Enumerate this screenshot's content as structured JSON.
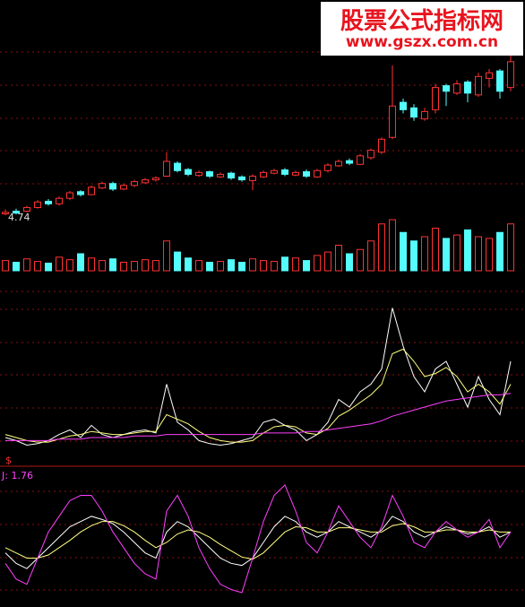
{
  "watermark": {
    "title": "股票公式指标网",
    "url": "www.gszx.com.cn"
  },
  "chart_data": [
    {
      "type": "candlestick",
      "up_color": "#ff3232",
      "down_color": "#54fcfc",
      "ylim": [
        4.5,
        9.6
      ],
      "open": [
        4.78,
        4.85,
        4.85,
        4.95,
        5.12,
        5.05,
        5.2,
        5.38,
        5.3,
        5.48,
        5.6,
        5.45,
        5.55,
        5.62,
        5.7,
        5.8,
        6.15,
        5.98,
        5.82,
        5.92,
        5.78,
        5.88,
        5.78,
        5.68,
        5.78,
        5.88,
        5.97,
        5.83,
        5.92,
        5.78,
        5.95,
        6.08,
        6.22,
        6.12,
        6.3,
        6.45,
        6.85,
        7.8,
        7.65,
        7.35,
        7.6,
        8.25,
        8.05,
        8.35,
        8.0,
        8.45,
        8.65,
        8.2
      ],
      "high": [
        4.9,
        4.92,
        5.0,
        5.15,
        5.18,
        5.25,
        5.4,
        5.42,
        5.55,
        5.65,
        5.65,
        5.6,
        5.7,
        5.75,
        5.8,
        6.45,
        6.2,
        6.02,
        5.95,
        5.95,
        5.9,
        5.92,
        5.82,
        5.85,
        5.95,
        6.0,
        6.02,
        5.95,
        5.98,
        6.0,
        6.15,
        6.25,
        6.28,
        6.4,
        6.55,
        6.85,
        8.8,
        7.9,
        7.75,
        7.65,
        8.3,
        8.3,
        8.4,
        8.4,
        8.6,
        8.7,
        8.7,
        9.5
      ],
      "low": [
        4.74,
        4.76,
        4.82,
        4.92,
        5.0,
        5.0,
        5.15,
        5.25,
        5.28,
        5.45,
        5.4,
        5.42,
        5.5,
        5.6,
        5.65,
        5.78,
        5.9,
        5.8,
        5.78,
        5.75,
        5.75,
        5.7,
        5.65,
        5.42,
        5.75,
        5.85,
        5.8,
        5.8,
        5.75,
        5.75,
        5.9,
        6.05,
        6.1,
        6.1,
        6.25,
        6.4,
        6.8,
        7.5,
        7.3,
        7.3,
        7.5,
        7.7,
        8.0,
        7.8,
        7.95,
        8.2,
        7.9,
        8.1
      ],
      "close": [
        4.82,
        4.8,
        4.95,
        5.1,
        5.05,
        5.2,
        5.35,
        5.3,
        5.5,
        5.6,
        5.45,
        5.55,
        5.65,
        5.7,
        5.75,
        6.2,
        5.95,
        5.85,
        5.9,
        5.8,
        5.85,
        5.75,
        5.7,
        5.8,
        5.9,
        5.95,
        5.85,
        5.9,
        5.8,
        5.95,
        6.1,
        6.2,
        6.15,
        6.35,
        6.5,
        6.8,
        7.7,
        7.6,
        7.4,
        7.55,
        8.2,
        8.1,
        8.3,
        8.05,
        8.5,
        8.6,
        8.1,
        8.9
      ]
    },
    {
      "type": "bar",
      "ylim": [
        0,
        60
      ],
      "values": [
        12,
        10,
        14,
        11,
        9,
        16,
        13,
        20,
        15,
        12,
        14,
        10,
        11,
        13,
        12,
        35,
        22,
        15,
        12,
        10,
        11,
        13,
        10,
        14,
        12,
        11,
        16,
        15,
        12,
        18,
        22,
        30,
        20,
        25,
        35,
        55,
        60,
        45,
        35,
        40,
        50,
        38,
        42,
        48,
        40,
        38,
        45,
        55
      ]
    },
    {
      "type": "line",
      "ylim": [
        0,
        100
      ],
      "series": [
        {
          "color": "#ffffff",
          "values": [
            10,
            8,
            5,
            6,
            8,
            12,
            15,
            10,
            18,
            12,
            10,
            12,
            14,
            15,
            13,
            45,
            20,
            15,
            8,
            6,
            5,
            6,
            8,
            10,
            20,
            22,
            18,
            15,
            8,
            12,
            20,
            35,
            30,
            40,
            45,
            55,
            95,
            70,
            50,
            40,
            55,
            60,
            45,
            30,
            50,
            35,
            25,
            60
          ]
        },
        {
          "color": "#ffff80",
          "values": [
            12,
            10,
            8,
            7,
            7,
            9,
            11,
            12,
            14,
            13,
            12,
            12,
            13,
            14,
            14,
            25,
            22,
            19,
            14,
            10,
            8,
            7,
            7,
            8,
            13,
            17,
            18,
            17,
            13,
            12,
            16,
            24,
            28,
            33,
            38,
            45,
            65,
            68,
            60,
            50,
            52,
            56,
            50,
            40,
            45,
            40,
            32,
            45
          ]
        },
        {
          "color": "#ff40ff",
          "values": [
            8,
            8,
            8,
            8,
            8,
            9,
            9,
            9,
            10,
            10,
            10,
            10,
            11,
            11,
            11,
            12,
            12,
            12,
            12,
            12,
            12,
            12,
            12,
            12,
            13,
            13,
            13,
            13,
            14,
            14,
            15,
            16,
            17,
            18,
            19,
            21,
            24,
            26,
            28,
            30,
            32,
            34,
            35,
            36,
            37,
            38,
            38,
            39
          ]
        }
      ]
    },
    {
      "type": "line",
      "title": "J: 1.76",
      "marker": "$",
      "ylim": [
        -10,
        110
      ],
      "series": [
        {
          "color": "#ffffff",
          "values": [
            40,
            30,
            25,
            35,
            45,
            55,
            65,
            70,
            75,
            72,
            68,
            60,
            50,
            40,
            35,
            60,
            70,
            65,
            55,
            45,
            35,
            30,
            28,
            35,
            50,
            65,
            75,
            70,
            60,
            55,
            60,
            70,
            65,
            60,
            55,
            62,
            75,
            70,
            60,
            55,
            60,
            65,
            62,
            58,
            60,
            65,
            55,
            60
          ]
        },
        {
          "color": "#ffff80",
          "values": [
            45,
            40,
            35,
            35,
            38,
            45,
            52,
            60,
            66,
            70,
            70,
            66,
            60,
            52,
            45,
            50,
            58,
            62,
            60,
            55,
            48,
            42,
            36,
            34,
            40,
            50,
            60,
            65,
            64,
            60,
            60,
            64,
            64,
            62,
            60,
            60,
            66,
            68,
            65,
            60,
            60,
            62,
            62,
            60,
            60,
            62,
            60,
            60
          ]
        },
        {
          "color": "#ff40ff",
          "values": [
            30,
            15,
            10,
            35,
            60,
            75,
            90,
            95,
            95,
            80,
            60,
            45,
            30,
            20,
            15,
            80,
            95,
            75,
            45,
            25,
            10,
            5,
            2,
            35,
            70,
            95,
            105,
            80,
            50,
            40,
            60,
            85,
            70,
            55,
            45,
            65,
            95,
            75,
            50,
            45,
            60,
            70,
            62,
            55,
            60,
            72,
            45,
            60
          ]
        }
      ]
    }
  ]
}
